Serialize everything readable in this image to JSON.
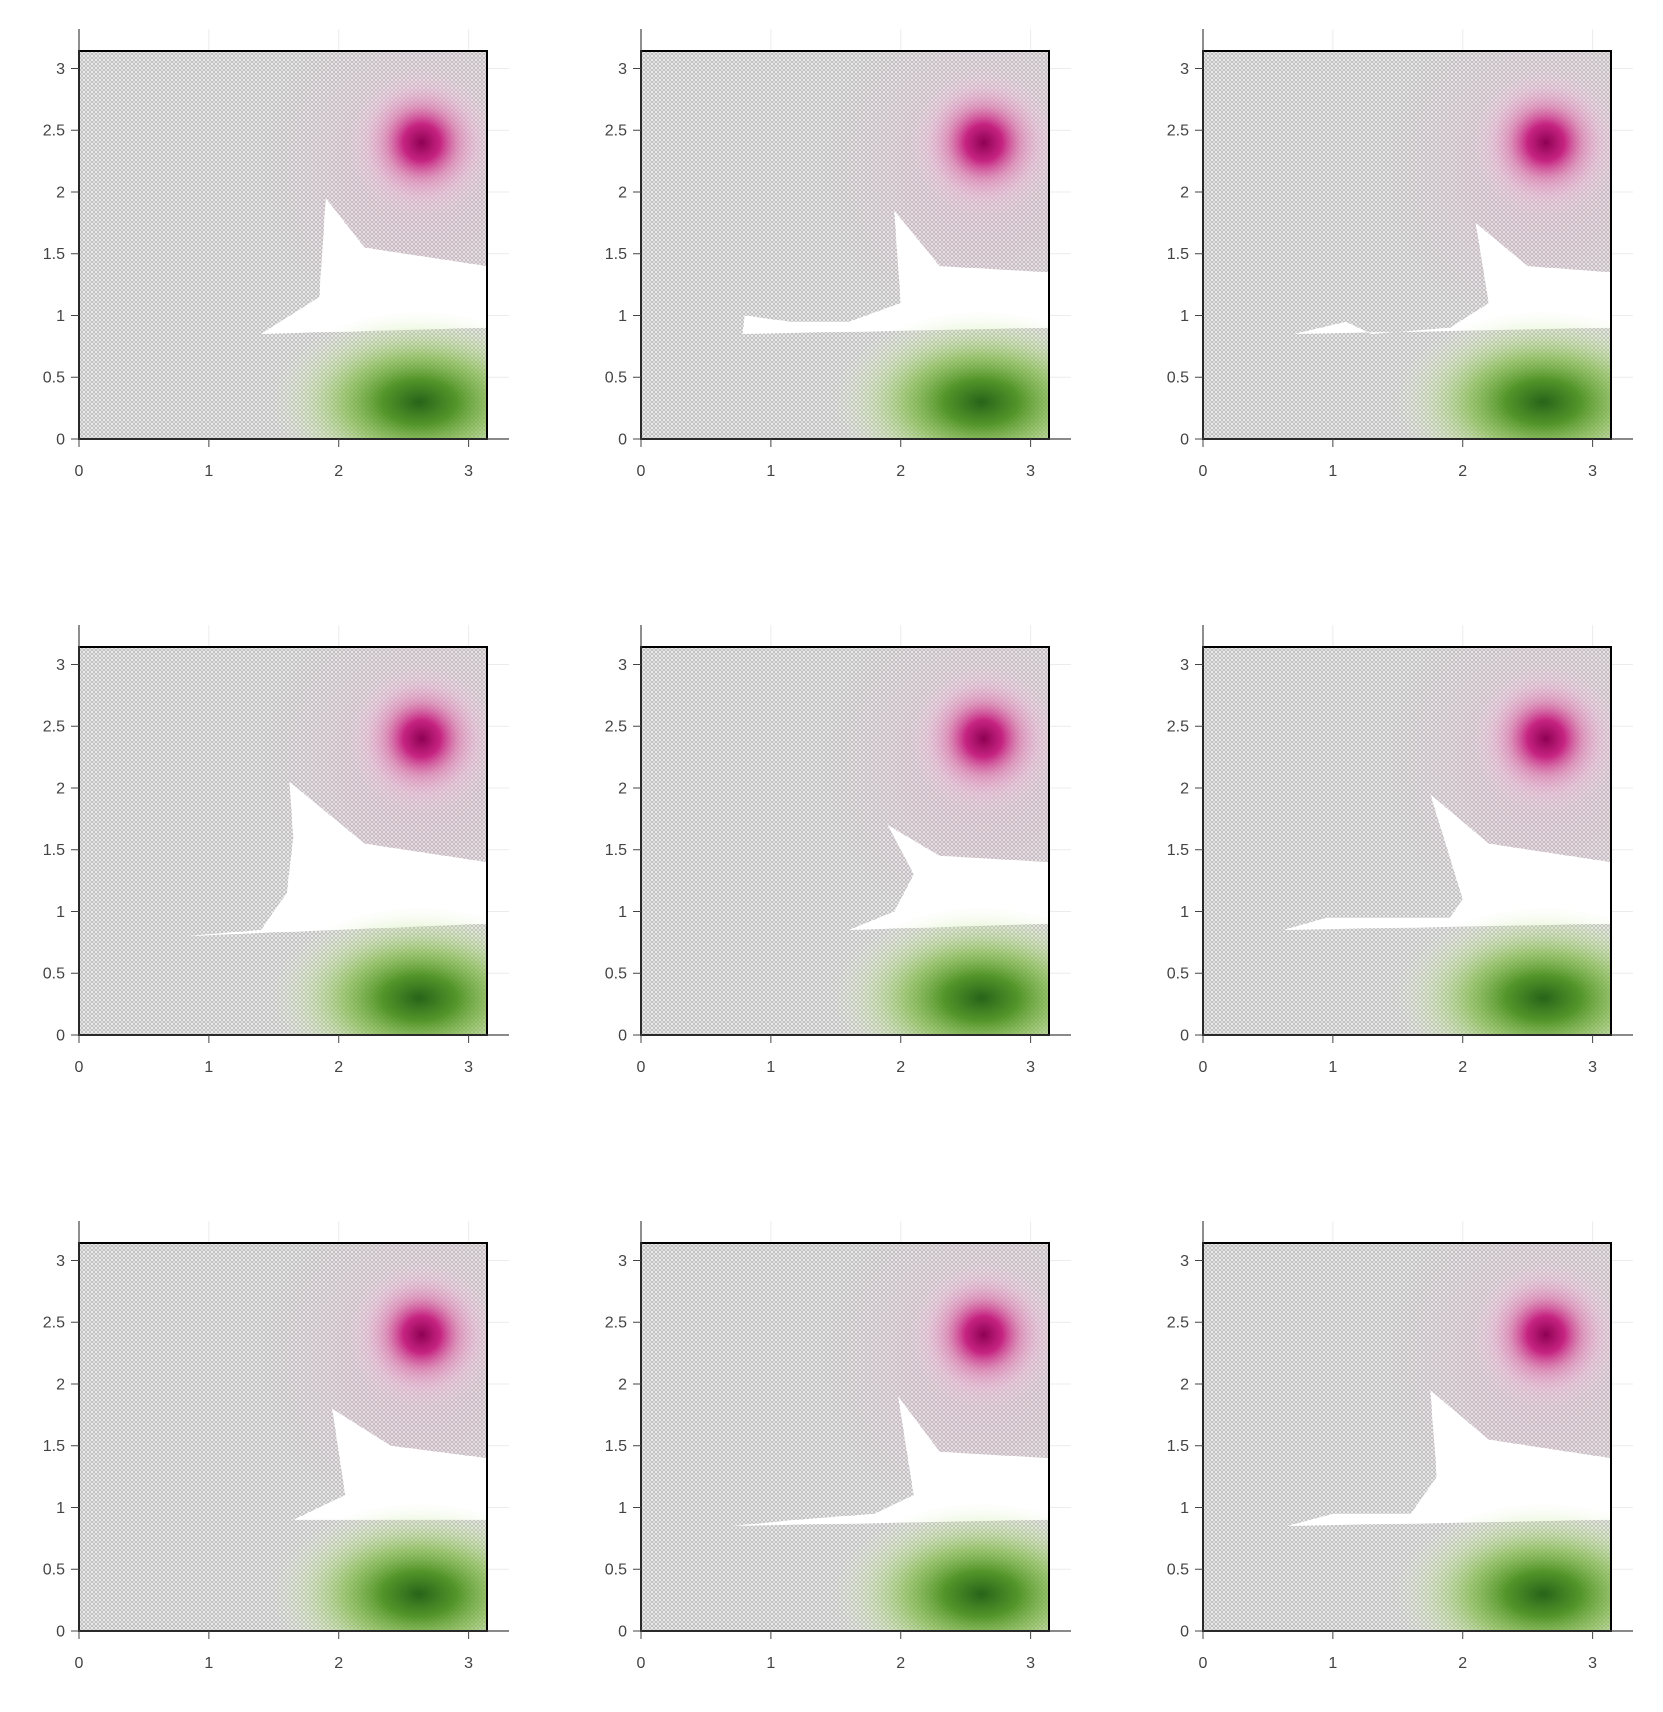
{
  "chart_data": {
    "type": "heatmap",
    "layout": "3x3 grid of panels",
    "colors": {
      "magenta": "#c51b7d",
      "green": "#4d9221",
      "neutral": "#d6d6d6",
      "empty": "#ffffff"
    },
    "xlim": [
      0,
      3.14159
    ],
    "ylim": [
      0,
      3.14159
    ],
    "x_ticks": [
      "0",
      "1",
      "2",
      "3"
    ],
    "y_ticks": [
      "0",
      "0.5",
      "1",
      "1.5",
      "2",
      "2.5",
      "3"
    ],
    "magenta_peak": [
      2.64,
      2.4
    ],
    "green_peak": [
      2.62,
      0.3
    ],
    "panels": [
      {
        "id": 1,
        "gap": [
          [
            1.9,
            1.95
          ],
          [
            2.2,
            1.55
          ],
          [
            3.14,
            1.4
          ],
          [
            3.14,
            0.9
          ],
          [
            1.4,
            0.85
          ],
          [
            1.85,
            1.15
          ]
        ]
      },
      {
        "id": 2,
        "gap": [
          [
            1.95,
            1.85
          ],
          [
            2.3,
            1.4
          ],
          [
            3.14,
            1.35
          ],
          [
            3.14,
            0.9
          ],
          [
            0.78,
            0.85
          ],
          [
            0.8,
            1.0
          ],
          [
            1.15,
            0.95
          ],
          [
            1.6,
            0.95
          ],
          [
            2.0,
            1.1
          ]
        ]
      },
      {
        "id": 3,
        "gap": [
          [
            2.1,
            1.75
          ],
          [
            2.5,
            1.4
          ],
          [
            3.14,
            1.35
          ],
          [
            3.14,
            0.9
          ],
          [
            0.7,
            0.85
          ],
          [
            1.1,
            0.95
          ],
          [
            1.3,
            0.85
          ],
          [
            1.9,
            0.9
          ],
          [
            2.2,
            1.1
          ]
        ]
      },
      {
        "id": 4,
        "gap": [
          [
            1.62,
            2.05
          ],
          [
            2.2,
            1.55
          ],
          [
            3.14,
            1.4
          ],
          [
            3.14,
            0.9
          ],
          [
            0.8,
            0.8
          ],
          [
            1.4,
            0.85
          ],
          [
            1.6,
            1.15
          ],
          [
            1.65,
            1.6
          ]
        ]
      },
      {
        "id": 5,
        "gap": [
          [
            1.9,
            1.7
          ],
          [
            2.3,
            1.45
          ],
          [
            3.14,
            1.4
          ],
          [
            3.14,
            0.9
          ],
          [
            1.6,
            0.85
          ],
          [
            1.95,
            1.0
          ],
          [
            2.1,
            1.3
          ]
        ]
      },
      {
        "id": 6,
        "gap": [
          [
            1.75,
            1.95
          ],
          [
            2.2,
            1.55
          ],
          [
            3.14,
            1.4
          ],
          [
            3.14,
            0.9
          ],
          [
            0.62,
            0.85
          ],
          [
            0.95,
            0.95
          ],
          [
            1.4,
            0.95
          ],
          [
            1.9,
            0.95
          ],
          [
            2.0,
            1.1
          ]
        ]
      },
      {
        "id": 7,
        "gap": [
          [
            1.95,
            1.8
          ],
          [
            2.4,
            1.5
          ],
          [
            3.14,
            1.4
          ],
          [
            3.14,
            0.9
          ],
          [
            1.65,
            0.9
          ],
          [
            2.05,
            1.1
          ]
        ]
      },
      {
        "id": 8,
        "gap": [
          [
            1.98,
            1.9
          ],
          [
            2.3,
            1.45
          ],
          [
            3.14,
            1.4
          ],
          [
            3.14,
            0.9
          ],
          [
            0.7,
            0.85
          ],
          [
            1.2,
            0.9
          ],
          [
            1.8,
            0.95
          ],
          [
            2.1,
            1.1
          ]
        ]
      },
      {
        "id": 9,
        "gap": [
          [
            1.75,
            1.95
          ],
          [
            2.2,
            1.55
          ],
          [
            3.14,
            1.4
          ],
          [
            3.14,
            0.9
          ],
          [
            0.65,
            0.85
          ],
          [
            1.0,
            0.95
          ],
          [
            1.6,
            0.95
          ],
          [
            1.8,
            1.25
          ]
        ]
      }
    ]
  }
}
